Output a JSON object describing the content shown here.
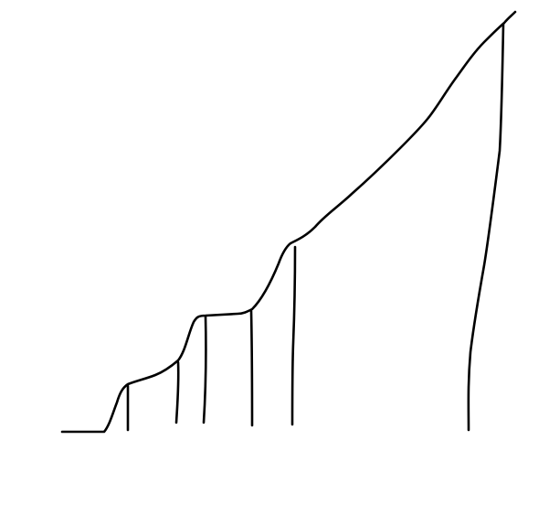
{
  "drawing": {
    "background_color": "#ffffff",
    "stroke_color": "#000000",
    "elements": [
      "outline-curve",
      "vertical-line-1",
      "vertical-line-2",
      "vertical-line-3",
      "vertical-line-4",
      "vertical-line-5",
      "vertical-line-6"
    ]
  }
}
